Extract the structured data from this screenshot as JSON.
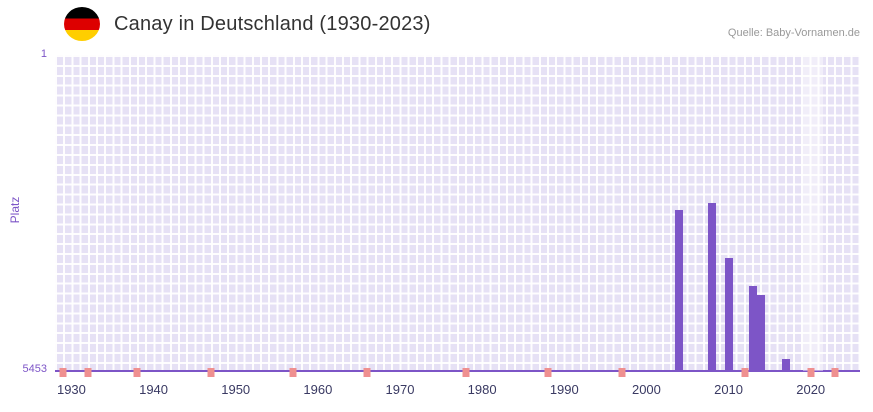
{
  "header": {
    "title": "Canay in Deutschland (1930-2023)",
    "source": "Quelle: Baby-Vornamen.de"
  },
  "flag_icon": {
    "name": "germany-flag",
    "colors": [
      "#000000",
      "#dd0000",
      "#ffce00"
    ]
  },
  "chart_data": {
    "type": "bar",
    "title": "Canay in Deutschland (1930-2023)",
    "xlabel": "",
    "ylabel": "Platz",
    "grid": true,
    "legend": "none",
    "y_axis": {
      "min": 1,
      "max": 5453,
      "inverted": true,
      "top_tick_label": "1",
      "bottom_tick_label": "5453"
    },
    "x_axis": {
      "min": 1928,
      "max": 2026,
      "tick_labels": [
        "1930",
        "1940",
        "1950",
        "1960",
        "1970",
        "1980",
        "1990",
        "2000",
        "2010",
        "2020"
      ]
    },
    "bars": [
      {
        "year": 2004,
        "rank": 2680
      },
      {
        "year": 2008,
        "rank": 2560
      },
      {
        "year": 2010,
        "rank": 3510
      },
      {
        "year": 2013,
        "rank": 3980
      },
      {
        "year": 2014,
        "rank": 4150
      },
      {
        "year": 2017,
        "rank": 5240
      }
    ],
    "no_rank_marker_years": [
      1929,
      1932,
      1938,
      1947,
      1957,
      1966,
      1978,
      1988,
      1997,
      2012,
      2020,
      2023
    ],
    "highlight_band": {
      "start_year": 2019,
      "end_year": 2021.5
    },
    "colors": {
      "bar": "#7d55c7",
      "marker": "#ef9090",
      "plot_background": "#e6e1f5",
      "grid_line": "#ffffff",
      "axis_line": "#7d55c7",
      "rank_label": "#7d55c7",
      "year_label": "#3a3a63"
    }
  }
}
